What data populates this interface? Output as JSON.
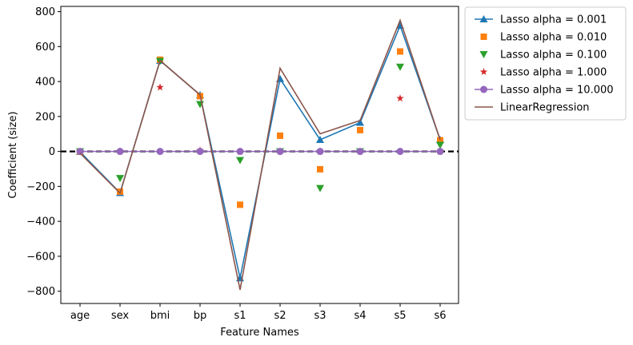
{
  "chart_data": {
    "type": "line",
    "xlabel": "Feature Names",
    "ylabel": "Coefficient (size)",
    "categories": [
      "age",
      "sex",
      "bmi",
      "bp",
      "s1",
      "s2",
      "s3",
      "s4",
      "s5",
      "s6"
    ],
    "ylim": [
      -870,
      830
    ],
    "yticks": [
      -800,
      -600,
      -400,
      -200,
      0,
      200,
      400,
      600,
      800
    ],
    "zero_line": true,
    "legend_position": "outside-top-right",
    "series": [
      {
        "name": "Lasso alpha = 0.001",
        "color": "#1f77b4",
        "marker": "triangle-up",
        "line": true,
        "values": [
          -2,
          -237,
          520,
          323,
          -725,
          415,
          67,
          165,
          720,
          67
        ]
      },
      {
        "name": "Lasso alpha = 0.010",
        "color": "#ff7f0e",
        "marker": "square",
        "line": false,
        "values": [
          -1,
          -230,
          525,
          316,
          -305,
          90,
          -102,
          122,
          572,
          64
        ]
      },
      {
        "name": "Lasso alpha = 0.100",
        "color": "#2ca02c",
        "marker": "triangle-down",
        "line": false,
        "values": [
          0,
          -153,
          517,
          270,
          -50,
          0,
          -210,
          0,
          484,
          37
        ]
      },
      {
        "name": "Lasso alpha = 1.000",
        "color": "#d62728",
        "marker": "star",
        "line": false,
        "values": [
          0,
          0,
          367,
          6,
          0,
          0,
          0,
          0,
          304,
          0
        ]
      },
      {
        "name": "Lasso alpha = 10.000",
        "color": "#9467bd",
        "marker": "circle",
        "line": true,
        "values": [
          0,
          0,
          0,
          0,
          0,
          0,
          0,
          0,
          0,
          0
        ]
      },
      {
        "name": "LinearRegression",
        "color": "#8c564b",
        "marker": "none",
        "line": true,
        "values": [
          -10,
          -239,
          520,
          324,
          -792,
          476,
          101,
          177,
          751,
          67
        ]
      }
    ]
  }
}
